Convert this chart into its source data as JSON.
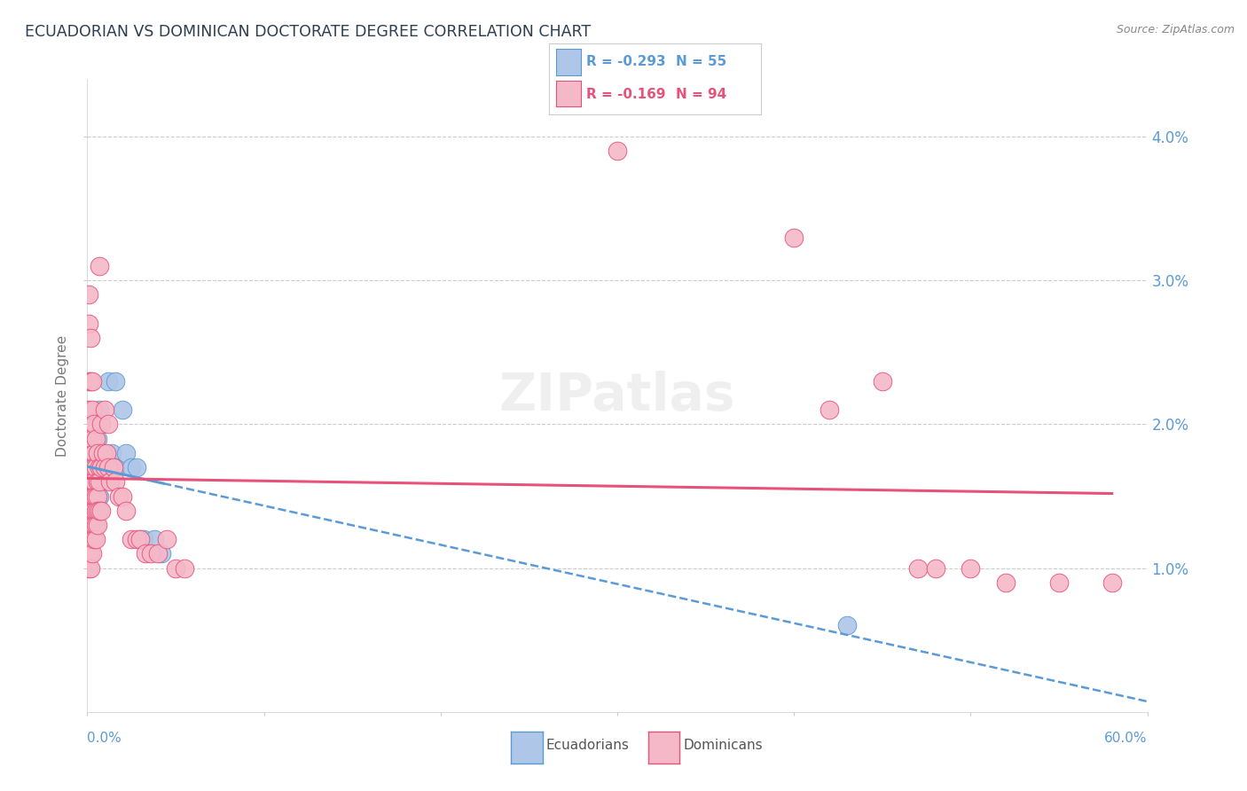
{
  "title": "ECUADORIAN VS DOMINICAN DOCTORATE DEGREE CORRELATION CHART",
  "source": "Source: ZipAtlas.com",
  "ylabel": "Doctorate Degree",
  "xlim": [
    0.0,
    0.6
  ],
  "ylim": [
    0.0,
    0.044
  ],
  "blue_R": -0.293,
  "blue_N": 55,
  "pink_R": -0.169,
  "pink_N": 94,
  "blue_color": "#aec6e8",
  "pink_color": "#f5b8c8",
  "blue_line_color": "#5b9bd5",
  "pink_line_color": "#e8527a",
  "ytick_vals": [
    0.01,
    0.02,
    0.03,
    0.04
  ],
  "ytick_labels": [
    "1.0%",
    "2.0%",
    "3.0%",
    "4.0%"
  ],
  "blue_scatter": [
    [
      0.001,
      0.0205
    ],
    [
      0.001,
      0.019
    ],
    [
      0.001,
      0.0175
    ],
    [
      0.001,
      0.016
    ],
    [
      0.002,
      0.0195
    ],
    [
      0.002,
      0.018
    ],
    [
      0.002,
      0.0165
    ],
    [
      0.002,
      0.015
    ],
    [
      0.003,
      0.0195
    ],
    [
      0.003,
      0.018
    ],
    [
      0.003,
      0.017
    ],
    [
      0.003,
      0.016
    ],
    [
      0.003,
      0.015
    ],
    [
      0.003,
      0.014
    ],
    [
      0.004,
      0.019
    ],
    [
      0.004,
      0.018
    ],
    [
      0.004,
      0.017
    ],
    [
      0.004,
      0.016
    ],
    [
      0.004,
      0.0155
    ],
    [
      0.004,
      0.014
    ],
    [
      0.004,
      0.013
    ],
    [
      0.005,
      0.018
    ],
    [
      0.005,
      0.017
    ],
    [
      0.005,
      0.016
    ],
    [
      0.005,
      0.015
    ],
    [
      0.005,
      0.014
    ],
    [
      0.005,
      0.013
    ],
    [
      0.006,
      0.019
    ],
    [
      0.006,
      0.018
    ],
    [
      0.006,
      0.017
    ],
    [
      0.006,
      0.016
    ],
    [
      0.006,
      0.015
    ],
    [
      0.007,
      0.021
    ],
    [
      0.007,
      0.018
    ],
    [
      0.007,
      0.016
    ],
    [
      0.007,
      0.015
    ],
    [
      0.008,
      0.018
    ],
    [
      0.008,
      0.017
    ],
    [
      0.009,
      0.017
    ],
    [
      0.01,
      0.018
    ],
    [
      0.011,
      0.017
    ],
    [
      0.012,
      0.023
    ],
    [
      0.012,
      0.017
    ],
    [
      0.014,
      0.018
    ],
    [
      0.016,
      0.023
    ],
    [
      0.016,
      0.017
    ],
    [
      0.02,
      0.021
    ],
    [
      0.022,
      0.018
    ],
    [
      0.025,
      0.017
    ],
    [
      0.028,
      0.017
    ],
    [
      0.03,
      0.012
    ],
    [
      0.032,
      0.012
    ],
    [
      0.038,
      0.012
    ],
    [
      0.042,
      0.011
    ],
    [
      0.43,
      0.006
    ]
  ],
  "pink_scatter": [
    [
      0.001,
      0.029
    ],
    [
      0.001,
      0.027
    ],
    [
      0.001,
      0.023
    ],
    [
      0.001,
      0.021
    ],
    [
      0.001,
      0.0195
    ],
    [
      0.001,
      0.0185
    ],
    [
      0.001,
      0.0175
    ],
    [
      0.001,
      0.0165
    ],
    [
      0.001,
      0.016
    ],
    [
      0.001,
      0.015
    ],
    [
      0.001,
      0.014
    ],
    [
      0.001,
      0.013
    ],
    [
      0.001,
      0.012
    ],
    [
      0.001,
      0.011
    ],
    [
      0.001,
      0.01
    ],
    [
      0.002,
      0.026
    ],
    [
      0.002,
      0.023
    ],
    [
      0.002,
      0.02
    ],
    [
      0.002,
      0.018
    ],
    [
      0.002,
      0.017
    ],
    [
      0.002,
      0.016
    ],
    [
      0.002,
      0.015
    ],
    [
      0.002,
      0.014
    ],
    [
      0.002,
      0.013
    ],
    [
      0.002,
      0.012
    ],
    [
      0.002,
      0.011
    ],
    [
      0.002,
      0.01
    ],
    [
      0.003,
      0.023
    ],
    [
      0.003,
      0.021
    ],
    [
      0.003,
      0.019
    ],
    [
      0.003,
      0.017
    ],
    [
      0.003,
      0.016
    ],
    [
      0.003,
      0.015
    ],
    [
      0.003,
      0.014
    ],
    [
      0.003,
      0.013
    ],
    [
      0.003,
      0.012
    ],
    [
      0.003,
      0.011
    ],
    [
      0.004,
      0.02
    ],
    [
      0.004,
      0.018
    ],
    [
      0.004,
      0.017
    ],
    [
      0.004,
      0.016
    ],
    [
      0.004,
      0.015
    ],
    [
      0.004,
      0.014
    ],
    [
      0.004,
      0.013
    ],
    [
      0.004,
      0.012
    ],
    [
      0.005,
      0.019
    ],
    [
      0.005,
      0.017
    ],
    [
      0.005,
      0.015
    ],
    [
      0.005,
      0.014
    ],
    [
      0.005,
      0.013
    ],
    [
      0.005,
      0.012
    ],
    [
      0.006,
      0.018
    ],
    [
      0.006,
      0.016
    ],
    [
      0.006,
      0.015
    ],
    [
      0.006,
      0.014
    ],
    [
      0.006,
      0.013
    ],
    [
      0.007,
      0.031
    ],
    [
      0.007,
      0.017
    ],
    [
      0.007,
      0.016
    ],
    [
      0.007,
      0.014
    ],
    [
      0.008,
      0.02
    ],
    [
      0.008,
      0.017
    ],
    [
      0.008,
      0.014
    ],
    [
      0.009,
      0.018
    ],
    [
      0.01,
      0.021
    ],
    [
      0.01,
      0.017
    ],
    [
      0.011,
      0.018
    ],
    [
      0.012,
      0.02
    ],
    [
      0.012,
      0.017
    ],
    [
      0.013,
      0.016
    ],
    [
      0.015,
      0.017
    ],
    [
      0.016,
      0.016
    ],
    [
      0.018,
      0.015
    ],
    [
      0.02,
      0.015
    ],
    [
      0.022,
      0.014
    ],
    [
      0.025,
      0.012
    ],
    [
      0.028,
      0.012
    ],
    [
      0.03,
      0.012
    ],
    [
      0.033,
      0.011
    ],
    [
      0.036,
      0.011
    ],
    [
      0.04,
      0.011
    ],
    [
      0.045,
      0.012
    ],
    [
      0.05,
      0.01
    ],
    [
      0.055,
      0.01
    ],
    [
      0.3,
      0.039
    ],
    [
      0.4,
      0.033
    ],
    [
      0.42,
      0.021
    ],
    [
      0.45,
      0.023
    ],
    [
      0.47,
      0.01
    ],
    [
      0.48,
      0.01
    ],
    [
      0.5,
      0.01
    ],
    [
      0.52,
      0.009
    ],
    [
      0.55,
      0.009
    ],
    [
      0.58,
      0.009
    ]
  ]
}
